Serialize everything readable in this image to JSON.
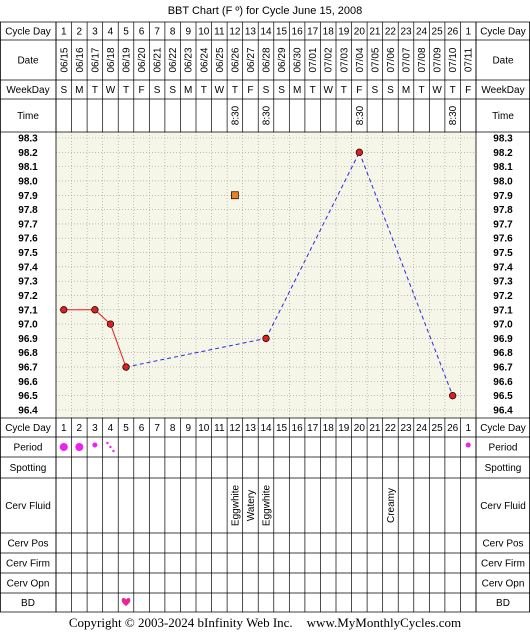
{
  "chart_data": {
    "type": "line",
    "title": "BBT Chart (F º) for Cycle June 15, 2008",
    "row_labels": {
      "cycle_day": "Cycle Day",
      "date": "Date",
      "weekday": "WeekDay",
      "time": "Time",
      "period": "Period",
      "spotting": "Spotting",
      "cerv_fluid": "Cerv Fluid",
      "cerv_pos": "Cerv Pos",
      "cerv_firm": "Cerv Firm",
      "cerv_opn": "Cerv Opn",
      "bd": "BD"
    },
    "cycle_days": [
      "1",
      "2",
      "3",
      "4",
      "5",
      "6",
      "7",
      "8",
      "9",
      "10",
      "11",
      "12",
      "13",
      "14",
      "15",
      "16",
      "17",
      "18",
      "19",
      "20",
      "21",
      "22",
      "23",
      "24",
      "25",
      "26",
      "1"
    ],
    "dates": [
      "06/15",
      "06/16",
      "06/17",
      "06/18",
      "06/19",
      "06/20",
      "06/21",
      "06/22",
      "06/23",
      "06/24",
      "06/25",
      "06/26",
      "06/27",
      "06/28",
      "06/29",
      "06/30",
      "07/01",
      "07/02",
      "07/03",
      "07/04",
      "07/05",
      "07/06",
      "07/07",
      "07/08",
      "07/09",
      "07/10",
      "07/11"
    ],
    "weekdays": [
      "S",
      "M",
      "T",
      "W",
      "T",
      "F",
      "S",
      "S",
      "M",
      "T",
      "W",
      "T",
      "F",
      "S",
      "S",
      "M",
      "T",
      "W",
      "T",
      "F",
      "S",
      "S",
      "M",
      "T",
      "W",
      "T",
      "F"
    ],
    "times": [
      "",
      "",
      "",
      "",
      "",
      "",
      "",
      "",
      "",
      "",
      "",
      "8:30",
      "",
      "8:30",
      "",
      "",
      "",
      "",
      "",
      "8:30",
      "",
      "",
      "",
      "",
      "",
      "8:30",
      ""
    ],
    "y_ticks": [
      "98.3",
      "98.2",
      "98.1",
      "98.0",
      "97.9",
      "97.8",
      "97.7",
      "97.6",
      "97.5",
      "97.4",
      "97.3",
      "97.2",
      "97.1",
      "97.0",
      "96.9",
      "96.8",
      "96.7",
      "96.6",
      "96.5",
      "96.4"
    ],
    "ylim": [
      96.4,
      98.3
    ],
    "temperatures": [
      {
        "day": 1,
        "temp": 97.1
      },
      {
        "day": 3,
        "temp": 97.1
      },
      {
        "day": 4,
        "temp": 97.0
      },
      {
        "day": 5,
        "temp": 96.7
      },
      {
        "day": 14,
        "temp": 96.9
      },
      {
        "day": 20,
        "temp": 98.2
      },
      {
        "day": 26,
        "temp": 96.5
      }
    ],
    "discarded_temp": {
      "day": 12,
      "temp": 97.9
    },
    "solid_segments": [
      [
        1,
        3
      ],
      [
        3,
        4
      ],
      [
        4,
        5
      ]
    ],
    "period": [
      {
        "day": 1,
        "level": "heavy"
      },
      {
        "day": 2,
        "level": "heavy"
      },
      {
        "day": 3,
        "level": "medium"
      },
      {
        "day": 4,
        "level": "spotting"
      },
      {
        "day": 27,
        "level": "medium"
      }
    ],
    "cerv_fluid": [
      {
        "day": 12,
        "value": "Eggwhite"
      },
      {
        "day": 13,
        "value": "Watery"
      },
      {
        "day": 14,
        "value": "Eggwhite"
      },
      {
        "day": 22,
        "value": "Creamy"
      }
    ],
    "bd": [
      5
    ],
    "colors": {
      "grid_bg": "#f5f5e8",
      "point_fill": "#e02020",
      "solid_line": "#e02020",
      "dashed_line": "#2a2ae8",
      "discarded_fill": "#f08020",
      "period_dot": "#ee22ee",
      "bd_heart": "#ee2299"
    }
  },
  "footer": {
    "copyright": "Copyright © 2003-2024 bInfinity Web Inc.",
    "site": "www.MyMonthlyCycles.com"
  }
}
